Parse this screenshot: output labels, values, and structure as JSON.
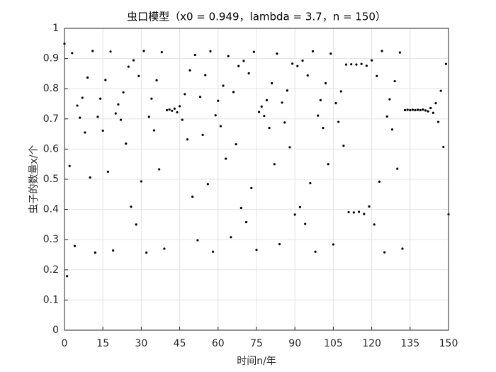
{
  "chart_data": {
    "type": "scatter",
    "title": "虫口模型（x0 = 0.949，lambda = 3.7，n = 150）",
    "xlabel": "时间n/年",
    "ylabel": "虫子的数量x/个",
    "color": "#000000",
    "grid": true,
    "xlim": [
      0,
      150
    ],
    "xticks": [
      0,
      15,
      30,
      45,
      60,
      75,
      90,
      105,
      120,
      135,
      150
    ],
    "ylim": [
      0,
      1
    ],
    "yticks": [
      0,
      0.1,
      0.2,
      0.3,
      0.4,
      0.5,
      0.6,
      0.7,
      0.8,
      0.9,
      1
    ],
    "x": [
      0,
      1,
      2,
      3,
      4,
      5,
      6,
      7,
      8,
      9,
      10,
      11,
      12,
      13,
      14,
      15,
      16,
      17,
      18,
      19,
      20,
      21,
      22,
      23,
      24,
      25,
      26,
      27,
      28,
      29,
      30,
      31,
      32,
      33,
      34,
      35,
      36,
      37,
      38,
      39,
      40,
      41,
      42,
      43,
      44,
      45,
      46,
      47,
      48,
      49,
      50,
      51,
      52,
      53,
      54,
      55,
      56,
      57,
      58,
      59,
      60,
      61,
      62,
      63,
      64,
      65,
      66,
      67,
      68,
      69,
      70,
      71,
      72,
      73,
      74,
      75,
      76,
      77,
      78,
      79,
      80,
      81,
      82,
      83,
      84,
      85,
      86,
      87,
      88,
      89,
      90,
      91,
      92,
      93,
      94,
      95,
      96,
      97,
      98,
      99,
      100,
      101,
      102,
      103,
      104,
      105,
      106,
      107,
      108,
      109,
      110,
      111,
      112,
      113,
      114,
      115,
      116,
      117,
      118,
      119,
      120,
      121,
      122,
      123,
      124,
      125,
      126,
      127,
      128,
      129,
      130,
      131,
      132,
      133,
      134,
      135,
      136,
      137,
      138,
      139,
      140,
      141,
      142,
      143,
      144,
      145,
      146,
      147,
      148,
      149,
      150
    ],
    "values": [
      0.949,
      0.179,
      0.544,
      0.918,
      0.279,
      0.744,
      0.704,
      0.77,
      0.655,
      0.837,
      0.506,
      0.925,
      0.257,
      0.707,
      0.767,
      0.661,
      0.829,
      0.525,
      0.923,
      0.264,
      0.718,
      0.748,
      0.697,
      0.788,
      0.618,
      0.873,
      0.409,
      0.894,
      0.35,
      0.842,
      0.493,
      0.925,
      0.257,
      0.707,
      0.767,
      0.662,
      0.828,
      0.533,
      0.921,
      0.27,
      0.729,
      0.731,
      0.727,
      0.734,
      0.722,
      0.742,
      0.697,
      0.782,
      0.632,
      0.861,
      0.442,
      0.912,
      0.298,
      0.773,
      0.647,
      0.845,
      0.484,
      0.924,
      0.26,
      0.712,
      0.76,
      0.676,
      0.81,
      0.568,
      0.908,
      0.308,
      0.789,
      0.616,
      0.875,
      0.405,
      0.892,
      0.358,
      0.851,
      0.471,
      0.922,
      0.266,
      0.723,
      0.741,
      0.71,
      0.762,
      0.67,
      0.818,
      0.55,
      0.916,
      0.285,
      0.754,
      0.688,
      0.794,
      0.606,
      0.883,
      0.383,
      0.875,
      0.408,
      0.893,
      0.352,
      0.844,
      0.487,
      0.924,
      0.26,
      0.711,
      0.762,
      0.67,
      0.818,
      0.55,
      0.916,
      0.284,
      0.752,
      0.69,
      0.791,
      0.611,
      0.88,
      0.391,
      0.881,
      0.39,
      0.88,
      0.392,
      0.882,
      0.385,
      0.876,
      0.41,
      0.894,
      0.35,
      0.842,
      0.492,
      0.925,
      0.258,
      0.708,
      0.765,
      0.665,
      0.825,
      0.535,
      0.92,
      0.27,
      0.729,
      0.73,
      0.729,
      0.73,
      0.729,
      0.73,
      0.729,
      0.731,
      0.728,
      0.725,
      0.736,
      0.72,
      0.752,
      0.69,
      0.793,
      0.607,
      0.882,
      0.384
    ]
  }
}
